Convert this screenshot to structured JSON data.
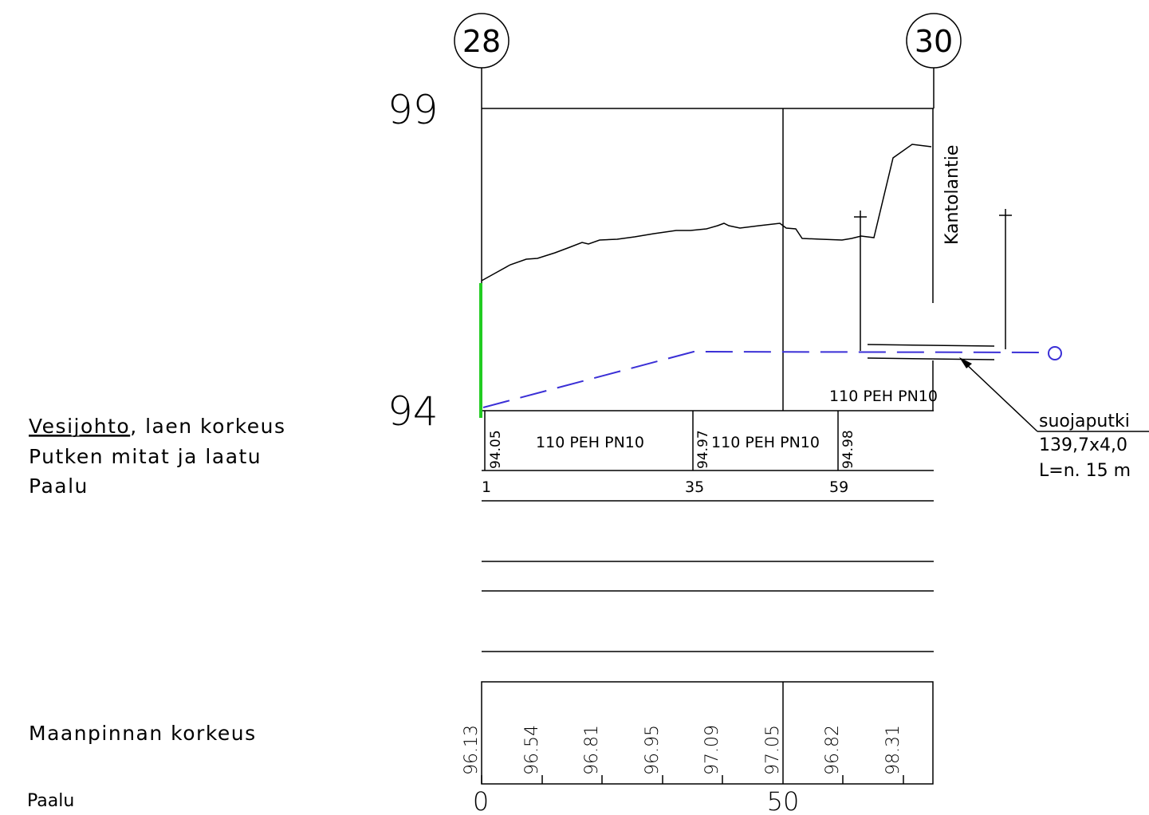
{
  "nodes": {
    "left": "28",
    "right": "30"
  },
  "elevation_scale": {
    "top": "99",
    "bottom": "94"
  },
  "road_label": "Kantolantie",
  "pipe_label_in_profile": "110 PEH PN10",
  "annotation": {
    "title": "suojaputki",
    "spec": "139,7x4,0",
    "length": "L=n. 15 m"
  },
  "row_labels": {
    "water_line_prefix": "Vesijohto",
    "water_line_suffix": ", laen korkeus",
    "pipe_size": "Putken mitat ja laatu",
    "station": "Paalu",
    "ground_level": "Maanpinnan korkeus",
    "station_bottom": "Paalu"
  },
  "pipe_table": {
    "crown_levels": [
      "94.05",
      "94.97",
      "94.98"
    ],
    "pipe_specs": [
      "110 PEH PN10",
      "110 PEH PN10"
    ],
    "stations": [
      "1",
      "35",
      "59"
    ]
  },
  "ground_table": {
    "levels": [
      "96.13",
      "96.54",
      "96.81",
      "96.95",
      "97.09",
      "97.05",
      "96.82",
      "98.31"
    ],
    "stations": [
      "0",
      "50"
    ]
  },
  "colors": {
    "pipe_line": "#3a2fd6",
    "existing_marker": "#22cc22",
    "ink": "#000000"
  }
}
